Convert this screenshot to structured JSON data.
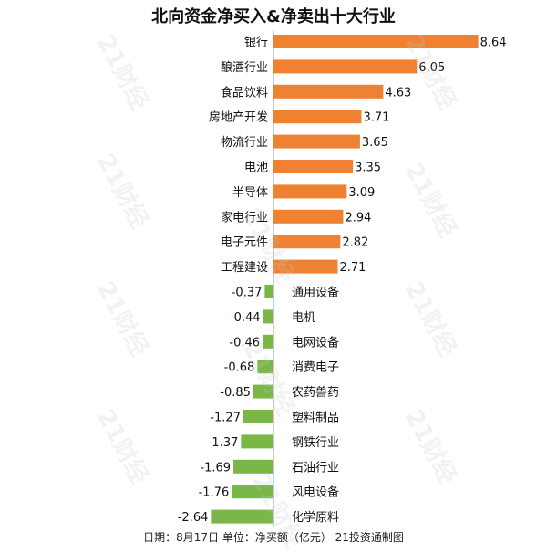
{
  "chart_data": {
    "type": "bar",
    "title": "北向资金净买入&净卖出十大行业",
    "categories": [
      "银行",
      "酿酒行业",
      "食品饮料",
      "房地产开发",
      "物流行业",
      "电池",
      "半导体",
      "家电行业",
      "电子元件",
      "工程建设",
      "通用设备",
      "电机",
      "电网设备",
      "消费电子",
      "农药兽药",
      "塑料制品",
      "钢铁行业",
      "石油行业",
      "风电设备",
      "化学原料"
    ],
    "values": [
      8.64,
      6.05,
      4.63,
      3.71,
      3.65,
      3.35,
      3.09,
      2.94,
      2.82,
      2.71,
      -0.37,
      -0.44,
      -0.46,
      -0.68,
      -0.85,
      -1.27,
      -1.37,
      -1.69,
      -1.76,
      -2.64
    ],
    "labels": [
      "8.64",
      "6.05",
      "4.63",
      "3.71",
      "3.65",
      "3.35",
      "3.09",
      "2.94",
      "2.82",
      "2.71",
      "-0.37",
      "-0.44",
      "-0.46",
      "-0.68",
      "-0.85",
      "-1.27",
      "-1.37",
      "-1.69",
      "-1.76",
      "-2.64"
    ],
    "colors": {
      "positive": "#EE8132",
      "negative": "#7AB648",
      "axis": "#999999"
    },
    "footer": "日期：8月17日 单位：净买额（亿元） 21投资通制图"
  },
  "watermark": "21财经"
}
